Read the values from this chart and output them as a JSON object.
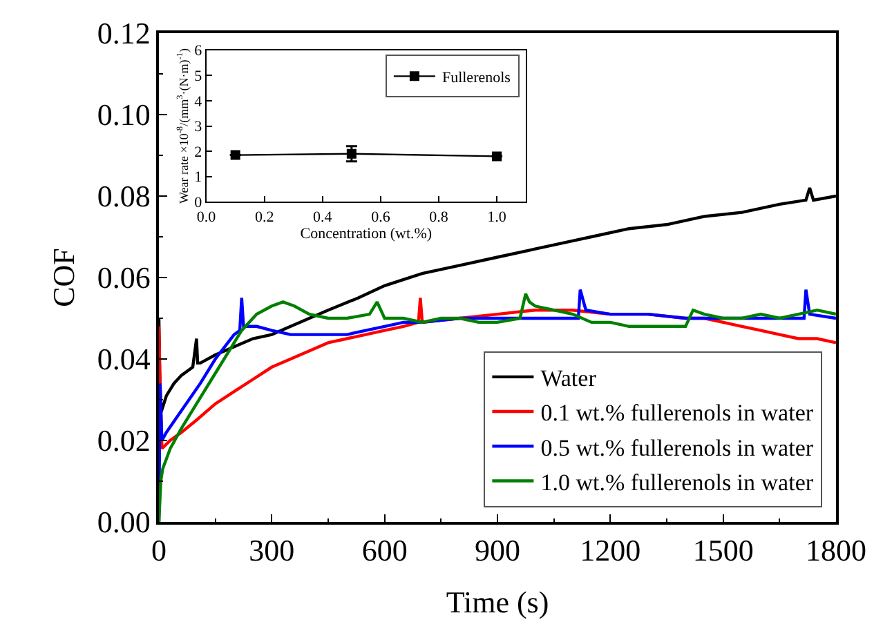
{
  "chart_data": [
    {
      "type": "line",
      "xlabel": "Time (s)",
      "ylabel": "COF",
      "xlim": [
        0,
        1800
      ],
      "ylim": [
        0,
        0.12
      ],
      "xticks": [
        0,
        300,
        600,
        900,
        1200,
        1500,
        1800
      ],
      "yticks": [
        {
          "value": 0,
          "label": "0.00"
        },
        {
          "value": 0.02,
          "label": "0.02"
        },
        {
          "value": 0.04,
          "label": "0.04"
        },
        {
          "value": 0.06,
          "label": "0.06"
        },
        {
          "value": 0.08,
          "label": "0.08"
        },
        {
          "value": 0.1,
          "label": "0.10"
        },
        {
          "value": 0.12,
          "label": "0.12"
        }
      ],
      "legend": "bottom right",
      "marker": "none",
      "line_style": "solid",
      "series": [
        {
          "name": "Water",
          "color": "#000000",
          "x": [
            0,
            3,
            6,
            20,
            40,
            60,
            90,
            100,
            103,
            110,
            150,
            200,
            250,
            300,
            350,
            400,
            450,
            530,
            600,
            700,
            800,
            900,
            1000,
            1100,
            1150,
            1250,
            1350,
            1450,
            1550,
            1650,
            1720,
            1730,
            1740,
            1800
          ],
          "values": [
            0.05,
            0.03,
            0.027,
            0.031,
            0.034,
            0.036,
            0.038,
            0.045,
            0.039,
            0.039,
            0.041,
            0.043,
            0.045,
            0.046,
            0.048,
            0.05,
            0.052,
            0.055,
            0.058,
            0.061,
            0.063,
            0.065,
            0.067,
            0.069,
            0.07,
            0.072,
            0.073,
            0.075,
            0.076,
            0.078,
            0.079,
            0.082,
            0.079,
            0.08
          ]
        },
        {
          "name": "0.1 wt.% fullerenols in water",
          "color": "#ff0000",
          "x": [
            0,
            3,
            8,
            30,
            60,
            100,
            150,
            200,
            250,
            300,
            350,
            400,
            450,
            500,
            550,
            600,
            650,
            690,
            695,
            700,
            800,
            900,
            1000,
            1100,
            1200,
            1300,
            1400,
            1450,
            1500,
            1550,
            1600,
            1650,
            1700,
            1750,
            1800
          ],
          "values": [
            0.048,
            0.035,
            0.018,
            0.02,
            0.022,
            0.025,
            0.029,
            0.032,
            0.035,
            0.038,
            0.04,
            0.042,
            0.044,
            0.045,
            0.046,
            0.047,
            0.048,
            0.049,
            0.055,
            0.049,
            0.05,
            0.051,
            0.052,
            0.052,
            0.051,
            0.051,
            0.05,
            0.05,
            0.049,
            0.048,
            0.047,
            0.046,
            0.045,
            0.045,
            0.044
          ]
        },
        {
          "name": "0.5 wt.% fullerenols in water",
          "color": "#0000ff",
          "x": [
            0,
            3,
            8,
            20,
            50,
            80,
            110,
            150,
            200,
            215,
            220,
            225,
            260,
            300,
            350,
            400,
            450,
            500,
            550,
            600,
            650,
            700,
            800,
            900,
            1000,
            1100,
            1115,
            1120,
            1135,
            1200,
            1300,
            1400,
            1500,
            1600,
            1700,
            1715,
            1720,
            1730,
            1800
          ],
          "values": [
            0,
            0.034,
            0.02,
            0.022,
            0.026,
            0.03,
            0.034,
            0.04,
            0.046,
            0.047,
            0.055,
            0.048,
            0.048,
            0.047,
            0.046,
            0.046,
            0.046,
            0.046,
            0.047,
            0.048,
            0.049,
            0.049,
            0.05,
            0.05,
            0.05,
            0.05,
            0.05,
            0.057,
            0.052,
            0.051,
            0.051,
            0.05,
            0.05,
            0.05,
            0.05,
            0.05,
            0.057,
            0.051,
            0.05
          ]
        },
        {
          "name": "1.0 wt.% fullerenols in water",
          "color": "#008000",
          "x": [
            0,
            5,
            10,
            30,
            60,
            100,
            140,
            180,
            220,
            260,
            300,
            330,
            360,
            400,
            450,
            500,
            560,
            580,
            600,
            650,
            700,
            750,
            800,
            850,
            900,
            960,
            975,
            985,
            1000,
            1050,
            1100,
            1150,
            1200,
            1250,
            1300,
            1350,
            1400,
            1420,
            1450,
            1500,
            1550,
            1600,
            1650,
            1700,
            1750,
            1800
          ],
          "values": [
            0,
            0.01,
            0.013,
            0.018,
            0.023,
            0.029,
            0.035,
            0.041,
            0.047,
            0.051,
            0.053,
            0.054,
            0.053,
            0.051,
            0.05,
            0.05,
            0.051,
            0.054,
            0.05,
            0.05,
            0.049,
            0.05,
            0.05,
            0.049,
            0.049,
            0.05,
            0.056,
            0.054,
            0.053,
            0.052,
            0.051,
            0.049,
            0.049,
            0.048,
            0.048,
            0.048,
            0.048,
            0.052,
            0.051,
            0.05,
            0.05,
            0.051,
            0.05,
            0.051,
            0.052,
            0.051
          ]
        }
      ]
    },
    {
      "type": "line",
      "xlabel": "Concentration (wt.%)",
      "ylabel": "Wear rate ×10$^{-8}$/(mm$^{3}$·(N·m)$^{-1}$)",
      "xlim": [
        0,
        1.1
      ],
      "ylim": [
        0,
        6
      ],
      "xticks": [
        {
          "value": 0,
          "label": "0.0"
        },
        0.2,
        0.4,
        0.6,
        0.8,
        {
          "value": 1,
          "label": "1.0"
        }
      ],
      "yticks": [
        0,
        1,
        2,
        3,
        4,
        5,
        6
      ],
      "legend": "top right",
      "marker": "square",
      "line_style": "solid",
      "series": [
        {
          "name": "Fullerenols",
          "color": "#000000",
          "x": [
            0.1,
            0.5,
            1.0
          ],
          "values": [
            1.85,
            1.9,
            1.8
          ],
          "errors": [
            null,
            0.3,
            null
          ]
        }
      ]
    }
  ]
}
